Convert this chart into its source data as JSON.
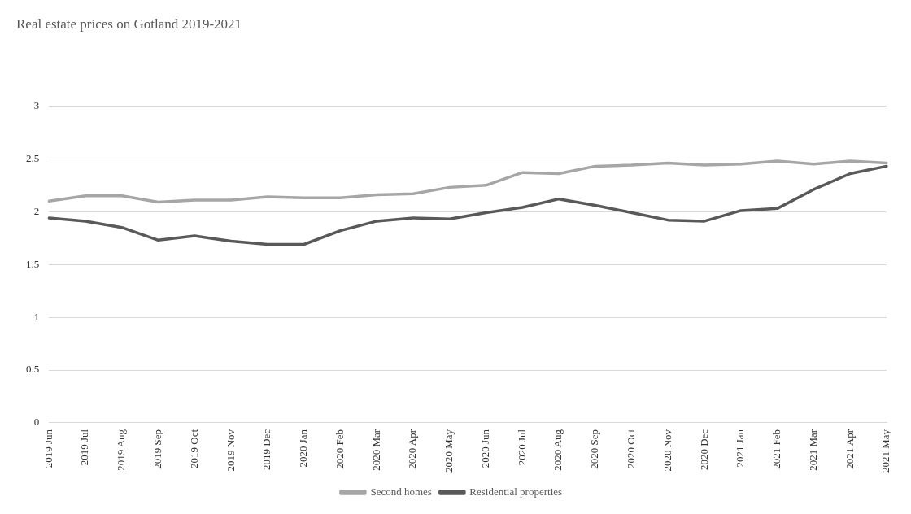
{
  "chart_data": {
    "type": "line",
    "title": "Real estate prices on Gotland 2019-2021",
    "categories": [
      "2019 Jun",
      "2019 Jul",
      "2019 Aug",
      "2019 Sep",
      "2019 Oct",
      "2019 Nov",
      "2019 Dec",
      "2020 Jan",
      "2020 Feb",
      "2020 Mar",
      "2020 Apr",
      "2020 May",
      "2020 Jun",
      "2020 Jul",
      "2020 Aug",
      "2020 Sep",
      "2020 Oct",
      "2020 Nov",
      "2020 Dec",
      "2021 Jan",
      "2021 Feb",
      "2021 Mar",
      "2021 Apr",
      "2021 May"
    ],
    "series": [
      {
        "name": "Second homes",
        "color": "#a6a6a6",
        "values": [
          2.1,
          2.15,
          2.15,
          2.09,
          2.11,
          2.11,
          2.14,
          2.13,
          2.13,
          2.16,
          2.17,
          2.23,
          2.25,
          2.37,
          2.36,
          2.43,
          2.44,
          2.46,
          2.44,
          2.45,
          2.48,
          2.45,
          2.48,
          2.46
        ]
      },
      {
        "name": "Residential properties",
        "color": "#595959",
        "values": [
          1.94,
          1.91,
          1.85,
          1.73,
          1.77,
          1.72,
          1.69,
          1.69,
          1.82,
          1.91,
          1.94,
          1.93,
          1.99,
          2.04,
          2.12,
          2.06,
          1.99,
          1.92,
          1.91,
          2.01,
          2.03,
          2.21,
          2.36,
          2.43
        ]
      }
    ],
    "ylim": [
      0,
      3
    ],
    "yticks": [
      0,
      0.5,
      1,
      1.5,
      2,
      2.5,
      3
    ],
    "grid": "y",
    "legend": "bottom",
    "marker": "none",
    "line_style": "solid"
  }
}
